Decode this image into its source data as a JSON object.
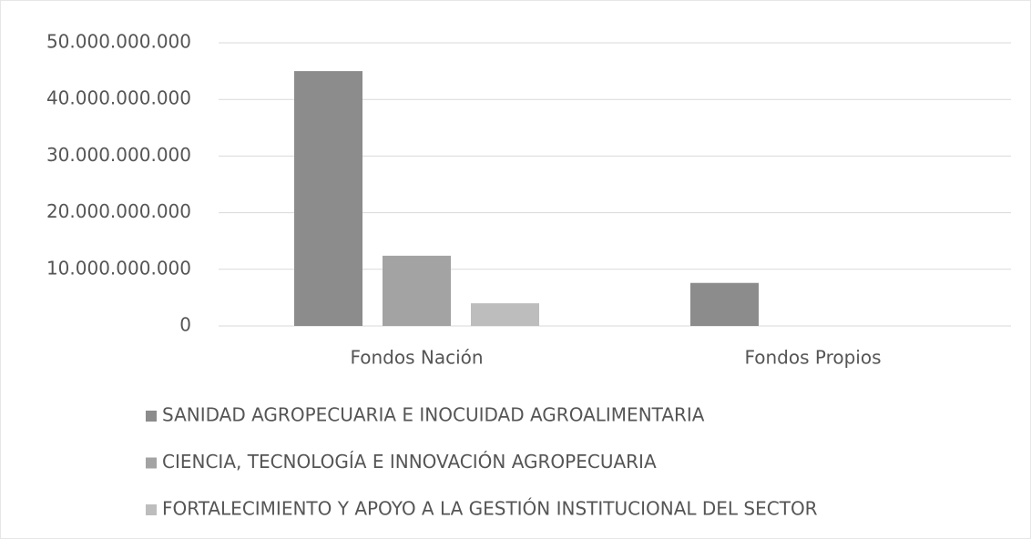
{
  "chart_data": {
    "type": "bar",
    "categories": [
      "Fondos Nación",
      "Fondos Propios"
    ],
    "series": [
      {
        "name": "SANIDAD AGROPECUARIA E INOCUIDAD AGROALIMENTARIA",
        "color": "#8c8c8c",
        "values": [
          45000000000,
          7600000000
        ]
      },
      {
        "name": "CIENCIA, TECNOLOGÍA E INNOVACIÓN AGROPECUARIA",
        "color": "#a3a3a3",
        "values": [
          12400000000,
          null
        ]
      },
      {
        "name": "FORTALECIMIENTO Y APOYO A LA GESTIÓN INSTITUCIONAL DEL SECTOR",
        "color": "#bdbdbd",
        "values": [
          4000000000,
          null
        ]
      }
    ],
    "ylim": [
      0,
      50000000000
    ],
    "yticks": [
      0,
      {
        "value": 10000000000,
        "label": "10.000.000.000"
      },
      {
        "value": 20000000000,
        "label": "20.000.000.000"
      },
      {
        "value": 30000000000,
        "label": "30.000.000.000"
      },
      {
        "value": 40000000000,
        "label": "40.000.000.000"
      },
      {
        "value": 50000000000,
        "label": "50.000.000.000"
      }
    ],
    "grid": true,
    "legend": "bottom"
  }
}
